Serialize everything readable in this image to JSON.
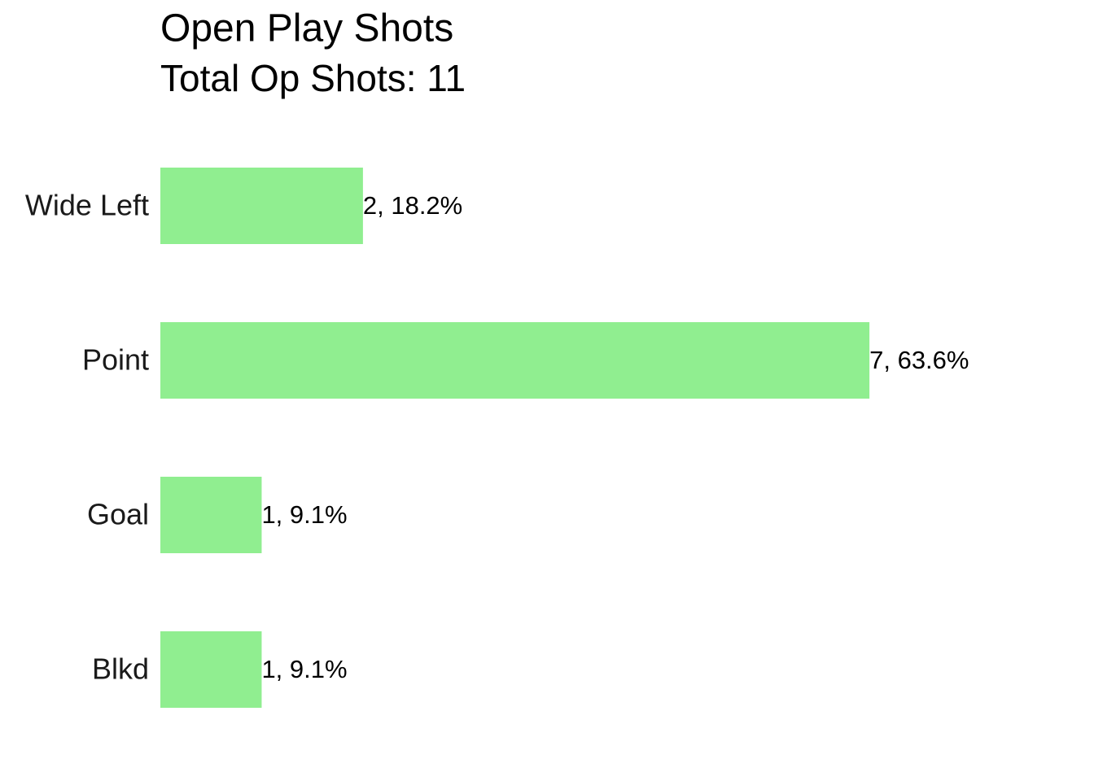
{
  "chart_data": {
    "type": "barh",
    "title": "Open Play Shots",
    "subtitle": "Total Op Shots: 11",
    "categories": [
      "Wide Left",
      "Point",
      "Goal",
      "Blkd"
    ],
    "values": [
      2,
      7,
      1,
      1
    ],
    "value_labels": [
      "2, 18.2%",
      "7, 63.6%",
      "1, 9.1%",
      "1, 9.1%"
    ],
    "color": "#90ee90",
    "xlim": [
      0,
      9
    ]
  }
}
